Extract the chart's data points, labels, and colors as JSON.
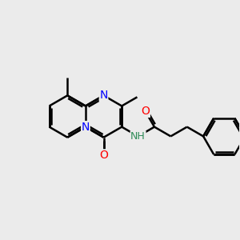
{
  "bg_color": "#ebebeb",
  "bond_color": "#000000",
  "bond_width": 1.8,
  "atom_colors": {
    "N": "#0000ff",
    "O": "#ff0000",
    "NH": "#2e8b57"
  },
  "font_size": 10,
  "fig_size": [
    3.0,
    3.0
  ],
  "dpi": 100
}
